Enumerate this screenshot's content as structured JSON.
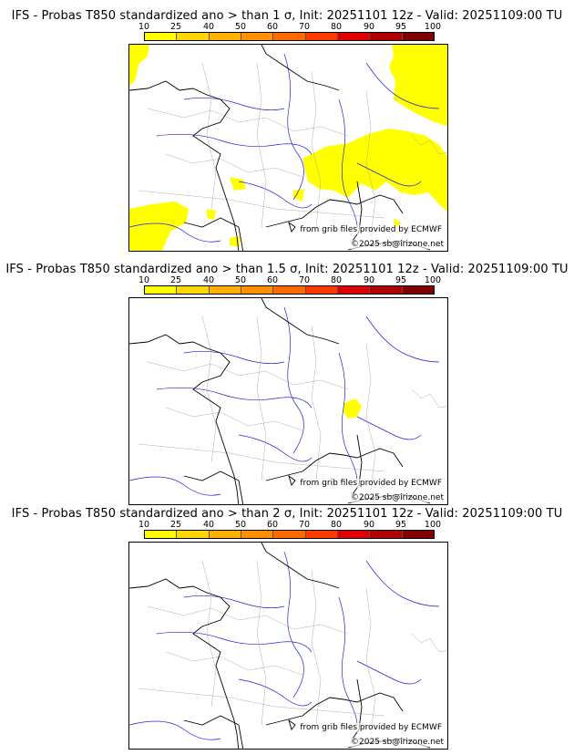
{
  "panels": [
    {
      "title": "IFS - Probas T850  standardized ano > than 1 σ, Init: 20251101 12z - Valid: 20251109:00 TU",
      "threshold": "1 σ"
    },
    {
      "title": "IFS - Probas T850  standardized ano > than 1.5 σ, Init: 20251101 12z - Valid: 20251109:00 TU",
      "threshold": "1.5 σ"
    },
    {
      "title": "IFS - Probas T850  standardized ano > than 2 σ, Init: 20251101 12z - Valid: 20251109:00 TU",
      "threshold": "2 σ"
    }
  ],
  "legend": {
    "ticks": [
      "10",
      "25",
      "40",
      "50",
      "60",
      "70",
      "80",
      "90",
      "95",
      "100"
    ],
    "colors": [
      "#ffff00",
      "#ffd700",
      "#ffb000",
      "#ff9000",
      "#ff6a00",
      "#ff3a00",
      "#e00000",
      "#b00000",
      "#800000"
    ]
  },
  "map_colors": {
    "land_border": "#000000",
    "rivers": "#2222dd",
    "regions": "#999999",
    "prob_fill": "#ffff00"
  },
  "credits": {
    "source": "from grib files provided by ECMWF",
    "copyright": "©2025 sb@irizone.net"
  }
}
